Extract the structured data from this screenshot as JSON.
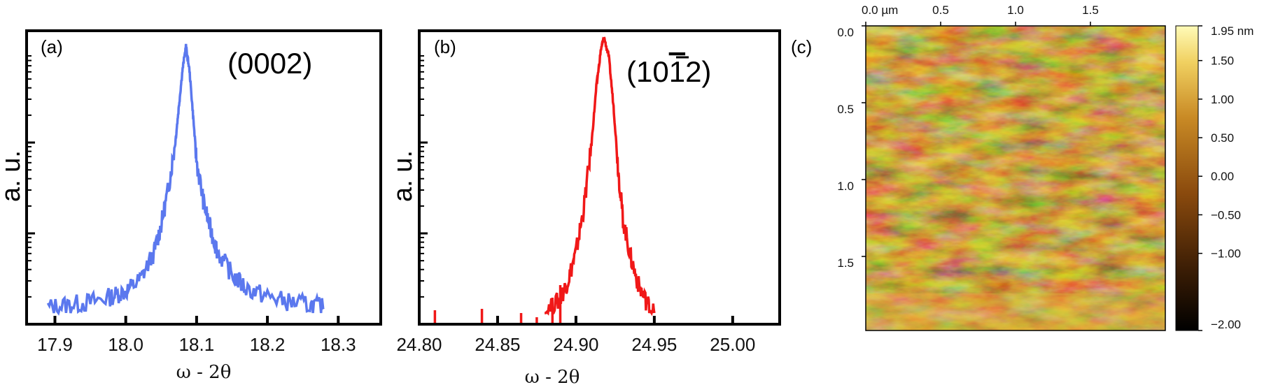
{
  "chart_data": [
    {
      "panel": "(a)",
      "type": "line",
      "peak_label": "(0002)",
      "xlabel": "ω - 2θ",
      "ylabel": "a. u.",
      "yscale": "log",
      "xlim": [
        17.86,
        18.36
      ],
      "xticks": [
        "17.9",
        "18.0",
        "18.1",
        "18.2",
        "18.3"
      ],
      "xtick_values": [
        17.9,
        18.0,
        18.1,
        18.2,
        18.3
      ],
      "color": "#5b78ee",
      "series": [
        {
          "x": [
            17.89,
            17.92,
            17.95,
            17.98,
            18.0,
            18.02,
            18.04,
            18.05,
            18.06,
            18.07,
            18.075,
            18.08,
            18.085,
            18.09,
            18.095,
            18.1,
            18.11,
            18.12,
            18.13,
            18.15,
            18.17,
            18.2,
            18.23,
            18.26,
            18.28
          ],
          "y": [
            0.02,
            0.03,
            0.04,
            0.06,
            0.08,
            0.12,
            0.22,
            0.32,
            0.45,
            0.62,
            0.75,
            0.88,
            0.97,
            0.88,
            0.72,
            0.55,
            0.4,
            0.3,
            0.22,
            0.14,
            0.09,
            0.06,
            0.04,
            0.03,
            0.02
          ]
        }
      ]
    },
    {
      "panel": "(b)",
      "type": "line",
      "peak_label_main": "(10",
      "peak_label_bar": "1",
      "peak_label_end": "2)",
      "xlabel": "ω - 2θ",
      "ylabel": "a. u.",
      "yscale": "log",
      "xlim": [
        24.8,
        25.03
      ],
      "xticks": [
        "24.80",
        "24.85",
        "24.90",
        "24.95",
        "25.00"
      ],
      "xtick_values": [
        24.8,
        24.85,
        24.9,
        24.95,
        25.0
      ],
      "color": "#f01818",
      "series": [
        {
          "x": [
            24.88,
            24.89,
            24.895,
            24.9,
            24.905,
            24.91,
            24.913,
            24.916,
            24.918,
            24.921,
            24.924,
            24.927,
            24.93,
            24.935,
            24.94,
            24.945,
            24.95
          ],
          "y": [
            0.0,
            0.05,
            0.12,
            0.22,
            0.38,
            0.62,
            0.82,
            0.96,
            1.0,
            0.93,
            0.75,
            0.52,
            0.34,
            0.2,
            0.1,
            0.04,
            0.0
          ]
        }
      ]
    },
    {
      "panel": "(c)",
      "type": "heatmap",
      "x_ticks": [
        "0.0 µm",
        "0.5",
        "1.0",
        "1.5"
      ],
      "y_ticks": [
        "0.0",
        "0.5",
        "1.0",
        "1.5"
      ],
      "colorbar_ticks": [
        "1.95 nm",
        "1.50",
        "1.00",
        "0.50",
        "0.00",
        "−0.50",
        "−1.00",
        "−2.00"
      ],
      "colorbar_range": [
        -2.0,
        1.95
      ],
      "colormap": [
        "#000000",
        "#3b1d05",
        "#8a4a0d",
        "#c98a25",
        "#f0d060",
        "#fffbb8"
      ]
    }
  ]
}
